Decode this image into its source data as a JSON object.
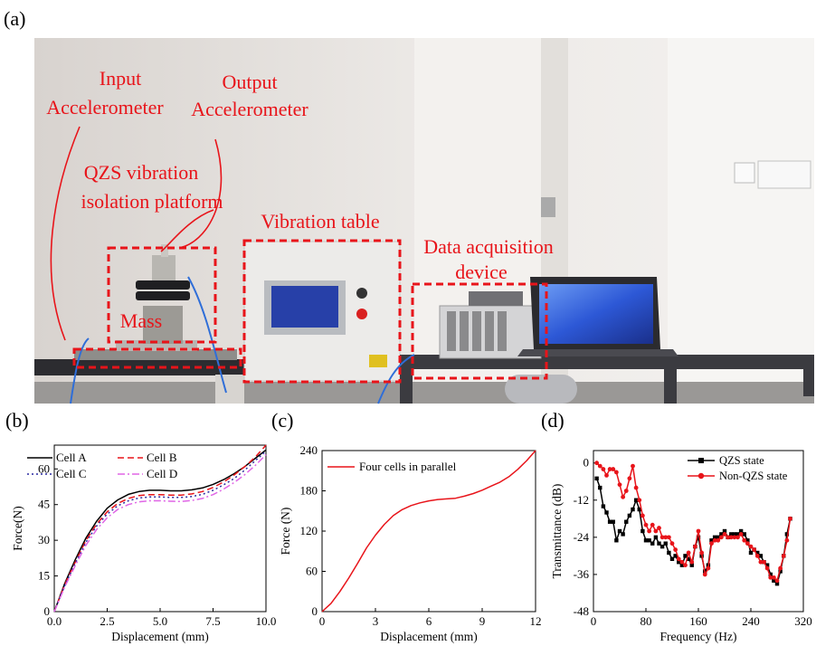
{
  "panels": {
    "a": "(a)",
    "b": "(b)",
    "c": "(c)",
    "d": "(d)"
  },
  "photo": {
    "labels": {
      "input_accel": [
        "Input",
        "Accelerometer"
      ],
      "output_accel": [
        "Output",
        "Accelerometer"
      ],
      "qzs": [
        "QZS vibration",
        "isolation platform"
      ],
      "vib_table": "Vibration table",
      "daq": [
        "Data acquisition",
        "device"
      ],
      "mass": "Mass"
    },
    "colors": {
      "annotation": "#e8141a",
      "wall": "#e9e5e1",
      "table": "#2a2a2e",
      "screen": "#2d58d6"
    }
  },
  "chart_data": [
    {
      "type": "line",
      "panel": "(b)",
      "xlabel": "Displacement (mm)",
      "ylabel": "Force(N)",
      "xlim": [
        0,
        10
      ],
      "ylim": [
        0,
        70
      ],
      "xticks": [
        "0.0",
        "2.5",
        "5.0",
        "7.5",
        "10.0"
      ],
      "yticks": [
        "0",
        "15",
        "30",
        "45",
        "60"
      ],
      "legend_position": "top",
      "x": [
        0,
        0.5,
        1,
        1.5,
        2,
        2.5,
        3,
        3.5,
        4,
        4.5,
        5,
        5.5,
        6,
        6.5,
        7,
        7.5,
        8,
        8.5,
        9,
        9.5,
        10
      ],
      "series": [
        {
          "name": "Cell A",
          "color": "#000000",
          "dash": "solid",
          "values": [
            0,
            12,
            22,
            31,
            38,
            43.5,
            47,
            49.3,
            50.5,
            51,
            51,
            50.8,
            50.8,
            51.2,
            52,
            53.5,
            55.5,
            58,
            61,
            64.5,
            68
          ]
        },
        {
          "name": "Cell B",
          "color": "#e8141a",
          "dash": "dashed",
          "values": [
            0,
            11.5,
            21,
            30,
            36.8,
            42,
            45.5,
            47.6,
            48.8,
            49.2,
            49.2,
            49,
            49,
            49.5,
            50.5,
            52.2,
            54.5,
            57.5,
            61,
            65,
            70
          ]
        },
        {
          "name": "Cell C",
          "color": "#2a2aa0",
          "dash": "dotted",
          "values": [
            0,
            11,
            20.5,
            29.3,
            36,
            41,
            44.5,
            46.6,
            47.8,
            48.2,
            48.2,
            48,
            48,
            48.4,
            49.3,
            51,
            53.3,
            56,
            59.5,
            63.5,
            67.5
          ]
        },
        {
          "name": "Cell D",
          "color": "#e066e6",
          "dash": "dashdot",
          "values": [
            0,
            10.5,
            19.5,
            28,
            34.5,
            39.5,
            43,
            45,
            46.2,
            46.6,
            46.6,
            46.4,
            46.3,
            46.7,
            47.6,
            49.2,
            51.5,
            54.3,
            57.6,
            61.5,
            66
          ]
        }
      ]
    },
    {
      "type": "line",
      "panel": "(c)",
      "xlabel": "Displacement (mm)",
      "ylabel": "Force (N)",
      "xlim": [
        0,
        12
      ],
      "ylim": [
        0,
        240
      ],
      "xticks": [
        "0",
        "3",
        "6",
        "9",
        "12"
      ],
      "yticks": [
        "0",
        "60",
        "120",
        "180",
        "240"
      ],
      "legend_position": "top-left",
      "x": [
        0,
        0.5,
        1,
        1.5,
        2,
        2.5,
        3,
        3.5,
        4,
        4.5,
        5,
        5.5,
        6,
        6.5,
        7,
        7.5,
        8,
        8.5,
        9,
        9.5,
        10,
        10.5,
        11,
        11.5,
        12
      ],
      "series": [
        {
          "name": "Four cells in parallel",
          "color": "#e8141a",
          "dash": "solid",
          "values": [
            0,
            12,
            30,
            50,
            72,
            95,
            114,
            130,
            143,
            152,
            158,
            162,
            165,
            167,
            168,
            169,
            172,
            176,
            181,
            187,
            193,
            201,
            212,
            225,
            240
          ]
        }
      ]
    },
    {
      "type": "line",
      "panel": "(d)",
      "xlabel": "Frequency (Hz)",
      "ylabel": "Transmittance (dB)",
      "xlim": [
        0,
        320
      ],
      "ylim": [
        -48,
        4
      ],
      "xticks": [
        "0",
        "80",
        "160",
        "240",
        "320"
      ],
      "yticks": [
        "0",
        "-12",
        "-24",
        "-36",
        "-48"
      ],
      "legend_position": "top-right",
      "x": [
        5,
        10,
        15,
        20,
        25,
        30,
        35,
        40,
        45,
        50,
        55,
        60,
        65,
        70,
        75,
        80,
        85,
        90,
        95,
        100,
        105,
        110,
        115,
        120,
        125,
        130,
        135,
        140,
        145,
        150,
        155,
        160,
        165,
        170,
        175,
        180,
        185,
        190,
        195,
        200,
        205,
        210,
        215,
        220,
        225,
        230,
        235,
        240,
        245,
        250,
        255,
        260,
        265,
        270,
        275,
        280,
        285,
        290,
        295,
        300
      ],
      "series": [
        {
          "name": "QZS state",
          "color": "#000000",
          "marker": "square",
          "values": [
            -5,
            -8,
            -14,
            -16,
            -19,
            -19,
            -25,
            -22,
            -23,
            -19,
            -17,
            -15,
            -12,
            -15,
            -22,
            -25,
            -25,
            -26,
            -24,
            -26,
            -27,
            -26,
            -29,
            -31,
            -30,
            -32,
            -33,
            -30,
            -31,
            -33,
            -27,
            -24,
            -30,
            -35,
            -33,
            -25,
            -24,
            -24,
            -23,
            -22,
            -24,
            -23,
            -23,
            -23,
            -22,
            -23,
            -25,
            -29,
            -28,
            -29,
            -30,
            -32,
            -33,
            -36,
            -38,
            -39,
            -35,
            -30,
            -23,
            -18
          ]
        },
        {
          "name": "Non-QZS state",
          "color": "#e8141a",
          "marker": "circle",
          "values": [
            0,
            -1,
            -2,
            -4,
            -2,
            -2,
            -3,
            -7,
            -11,
            -9,
            -5,
            -1,
            -8,
            -12,
            -17,
            -20,
            -22,
            -20,
            -22,
            -21,
            -24,
            -24,
            -24,
            -26,
            -28,
            -31,
            -32,
            -33,
            -29,
            -32,
            -27,
            -22,
            -29,
            -36,
            -34,
            -26,
            -25,
            -25,
            -24,
            -23,
            -24,
            -24,
            -24,
            -24,
            -23,
            -25,
            -26,
            -27,
            -28,
            -30,
            -32,
            -32,
            -34,
            -37,
            -37,
            -38,
            -34,
            -30,
            -25,
            -18
          ]
        }
      ]
    }
  ]
}
